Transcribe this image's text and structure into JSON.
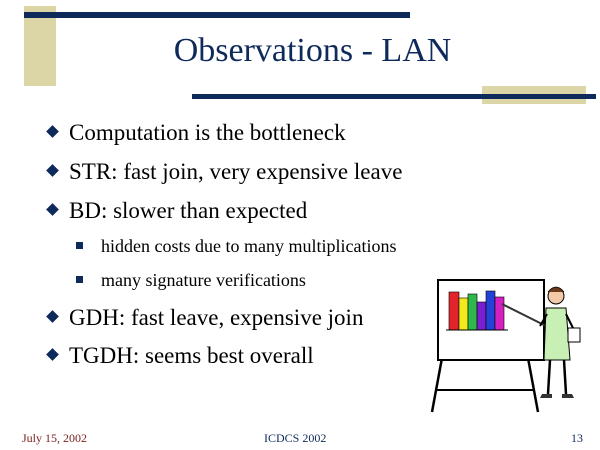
{
  "slide": {
    "title": "Observations - LAN",
    "bullets": [
      "Computation is the bottleneck",
      "STR: fast join, very expensive leave",
      "BD: slower than expected"
    ],
    "sub_bullets": [
      "hidden costs due to many multiplications",
      "many signature verifications"
    ],
    "bullets_after": [
      "GDH: fast leave, expensive join",
      "TGDH: seems best overall"
    ]
  },
  "footer": {
    "date": "July 15, 2002",
    "conference": "ICDCS 2002",
    "page_number": "13"
  },
  "colors": {
    "navy": "#0e2a5b",
    "tan": "#dcd6a6"
  },
  "icons": {
    "bullet": "diamond-bullet-icon",
    "sub_bullet": "square-bullet-icon",
    "clipart": "presenter-chart-clipart"
  }
}
